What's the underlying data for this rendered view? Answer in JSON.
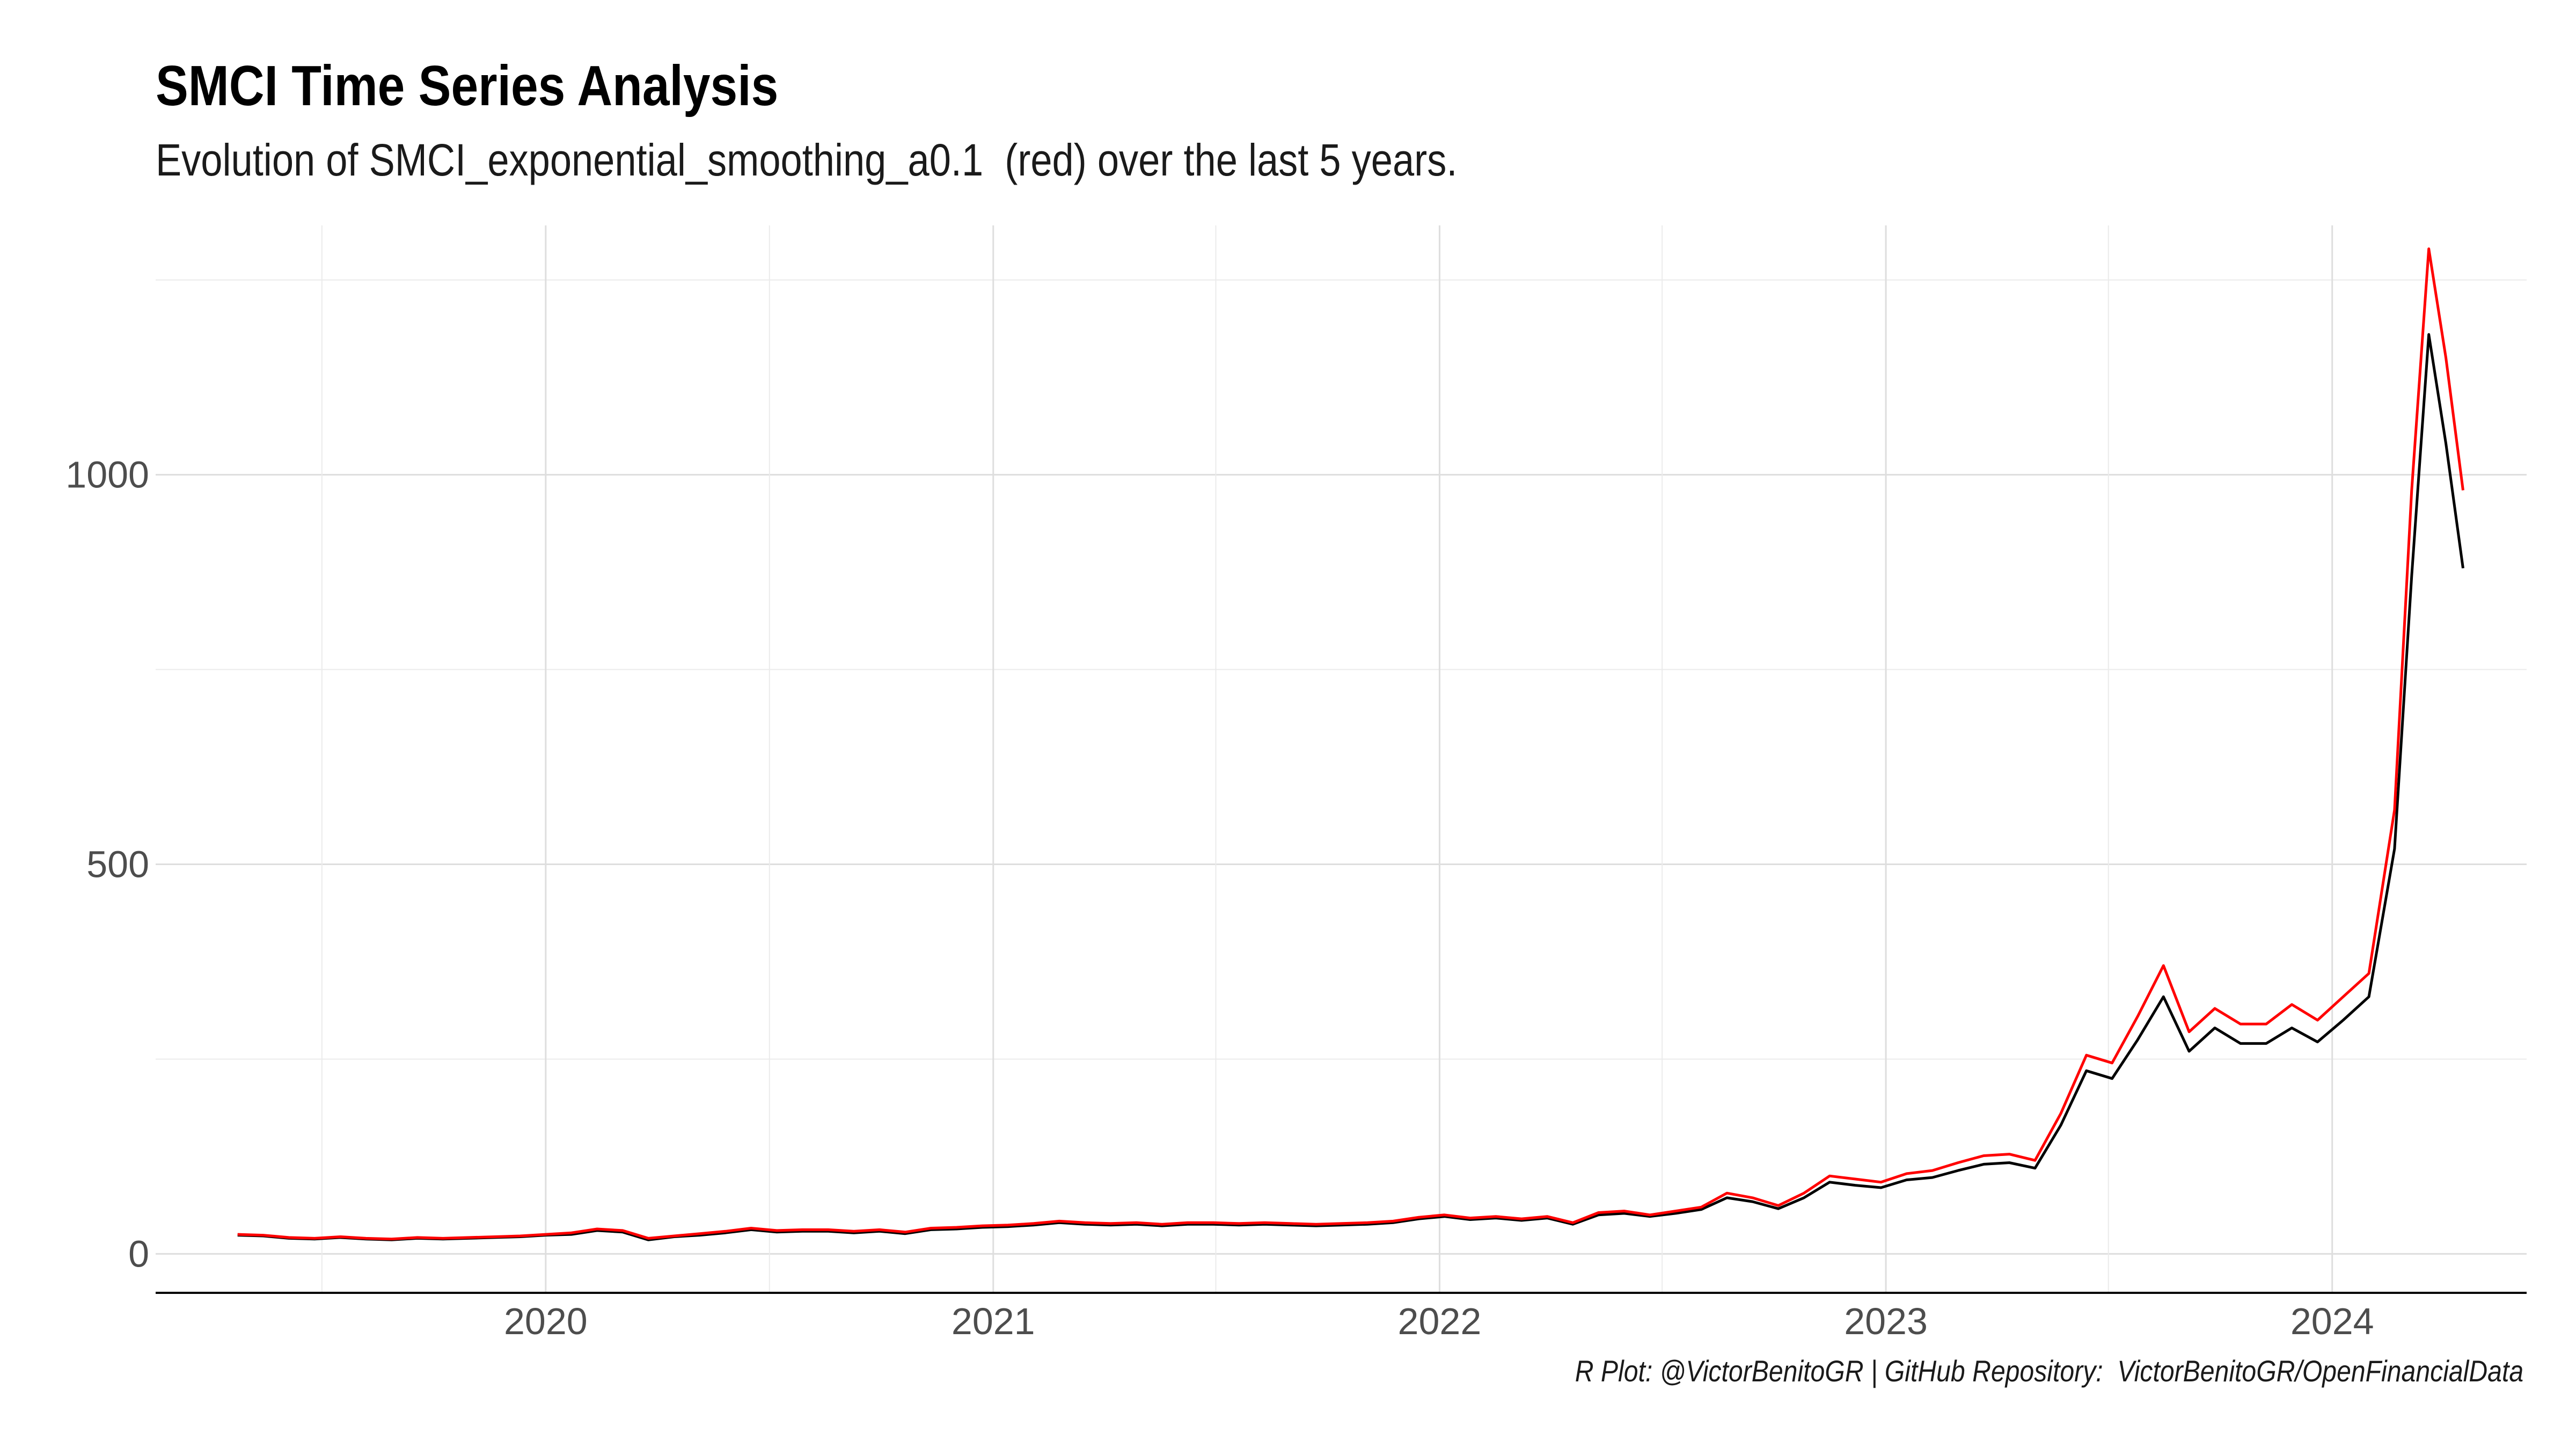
{
  "chart_data": {
    "type": "line",
    "title": "SMCI Time Series Analysis",
    "subtitle": "Evolution of SMCI_exponential_smoothing_a0.1  (red) over the last 5 years.",
    "caption": "R Plot: @VictorBenitoGR | GitHub Repository:  VictorBenitoGR/OpenFinancialData",
    "xlabel": "",
    "ylabel": "",
    "x_ticks": [
      "2020",
      "2021",
      "2022",
      "2023",
      "2024"
    ],
    "y_ticks": [
      0,
      500,
      1000
    ],
    "xlim": [
      "2019-02-16",
      "2024-06-08"
    ],
    "ylim": [
      -50,
      1320
    ],
    "grid": true,
    "legend": "none",
    "series": [
      {
        "color": "#000000",
        "x": [
          "2019-04-24",
          "2019-05-15",
          "2019-06-05",
          "2019-06-26",
          "2019-07-17",
          "2019-08-07",
          "2019-08-28",
          "2019-09-18",
          "2019-10-09",
          "2019-10-30",
          "2019-11-20",
          "2019-12-11",
          "2020-01-01",
          "2020-01-22",
          "2020-02-12",
          "2020-03-04",
          "2020-03-25",
          "2020-04-15",
          "2020-05-06",
          "2020-05-27",
          "2020-06-17",
          "2020-07-08",
          "2020-07-29",
          "2020-08-19",
          "2020-09-09",
          "2020-09-30",
          "2020-10-21",
          "2020-11-11",
          "2020-12-02",
          "2020-12-23",
          "2021-01-13",
          "2021-02-03",
          "2021-02-24",
          "2021-03-17",
          "2021-04-07",
          "2021-04-28",
          "2021-05-19",
          "2021-06-09",
          "2021-06-30",
          "2021-07-21",
          "2021-08-11",
          "2021-09-01",
          "2021-09-22",
          "2021-10-13",
          "2021-11-03",
          "2021-11-24",
          "2021-12-15",
          "2022-01-05",
          "2022-01-26",
          "2022-02-16",
          "2022-03-09",
          "2022-03-30",
          "2022-04-20",
          "2022-05-11",
          "2022-06-01",
          "2022-06-22",
          "2022-07-13",
          "2022-08-03",
          "2022-08-24",
          "2022-09-14",
          "2022-10-05",
          "2022-10-26",
          "2022-11-16",
          "2022-12-07",
          "2022-12-28",
          "2023-01-18",
          "2023-02-08",
          "2023-03-01",
          "2023-03-22",
          "2023-04-12",
          "2023-05-03",
          "2023-05-24",
          "2023-06-14",
          "2023-07-05",
          "2023-07-26",
          "2023-08-16",
          "2023-09-06",
          "2023-09-27",
          "2023-10-18",
          "2023-11-08",
          "2023-11-29",
          "2023-12-20",
          "2024-01-10",
          "2024-01-31",
          "2024-02-21",
          "2024-03-06",
          "2024-03-20",
          "2024-04-03",
          "2024-04-17"
        ],
        "values": [
          24,
          23,
          20,
          19,
          21,
          19,
          18,
          20,
          19,
          20,
          21,
          22,
          24,
          25,
          30,
          28,
          18,
          22,
          24,
          27,
          31,
          28,
          29,
          29,
          27,
          29,
          26,
          31,
          32,
          34,
          35,
          37,
          40,
          38,
          37,
          38,
          36,
          38,
          38,
          37,
          38,
          37,
          36,
          37,
          38,
          40,
          45,
          48,
          44,
          46,
          43,
          46,
          38,
          50,
          52,
          48,
          52,
          57,
          72,
          67,
          58,
          72,
          92,
          88,
          85,
          95,
          98,
          107,
          115,
          117,
          110,
          165,
          235,
          225,
          275,
          330,
          260,
          290,
          270,
          270,
          290,
          272,
          300,
          330,
          520,
          870,
          1180,
          1040,
          880
        ]
      },
      {
        "color": "#ff0000",
        "x": [
          "2019-04-24",
          "2019-05-15",
          "2019-06-05",
          "2019-06-26",
          "2019-07-17",
          "2019-08-07",
          "2019-08-28",
          "2019-09-18",
          "2019-10-09",
          "2019-10-30",
          "2019-11-20",
          "2019-12-11",
          "2020-01-01",
          "2020-01-22",
          "2020-02-12",
          "2020-03-04",
          "2020-03-25",
          "2020-04-15",
          "2020-05-06",
          "2020-05-27",
          "2020-06-17",
          "2020-07-08",
          "2020-07-29",
          "2020-08-19",
          "2020-09-09",
          "2020-09-30",
          "2020-10-21",
          "2020-11-11",
          "2020-12-02",
          "2020-12-23",
          "2021-01-13",
          "2021-02-03",
          "2021-02-24",
          "2021-03-17",
          "2021-04-07",
          "2021-04-28",
          "2021-05-19",
          "2021-06-09",
          "2021-06-30",
          "2021-07-21",
          "2021-08-11",
          "2021-09-01",
          "2021-09-22",
          "2021-10-13",
          "2021-11-03",
          "2021-11-24",
          "2021-12-15",
          "2022-01-05",
          "2022-01-26",
          "2022-02-16",
          "2022-03-09",
          "2022-03-30",
          "2022-04-20",
          "2022-05-11",
          "2022-06-01",
          "2022-06-22",
          "2022-07-13",
          "2022-08-03",
          "2022-08-24",
          "2022-09-14",
          "2022-10-05",
          "2022-10-26",
          "2022-11-16",
          "2022-12-07",
          "2022-12-28",
          "2023-01-18",
          "2023-02-08",
          "2023-03-01",
          "2023-03-22",
          "2023-04-12",
          "2023-05-03",
          "2023-05-24",
          "2023-06-14",
          "2023-07-05",
          "2023-07-26",
          "2023-08-16",
          "2023-09-06",
          "2023-09-27",
          "2023-10-18",
          "2023-11-08",
          "2023-11-29",
          "2023-12-20",
          "2024-01-10",
          "2024-01-31",
          "2024-02-21",
          "2024-03-06",
          "2024-03-20",
          "2024-04-03",
          "2024-04-17"
        ],
        "values": [
          25,
          24,
          21,
          20,
          22,
          20,
          19,
          21,
          20,
          21,
          22,
          23,
          25,
          27,
          32,
          30,
          20,
          23,
          26,
          29,
          33,
          30,
          31,
          31,
          29,
          31,
          28,
          33,
          34,
          36,
          37,
          39,
          42,
          40,
          39,
          40,
          38,
          40,
          40,
          39,
          40,
          39,
          38,
          39,
          40,
          42,
          47,
          50,
          46,
          48,
          45,
          48,
          40,
          53,
          55,
          50,
          55,
          60,
          78,
          72,
          62,
          78,
          100,
          96,
          92,
          103,
          107,
          117,
          126,
          128,
          120,
          180,
          255,
          245,
          305,
          370,
          285,
          315,
          295,
          295,
          320,
          300,
          330,
          360,
          570,
          980,
          1290,
          1150,
          980
        ]
      }
    ]
  }
}
